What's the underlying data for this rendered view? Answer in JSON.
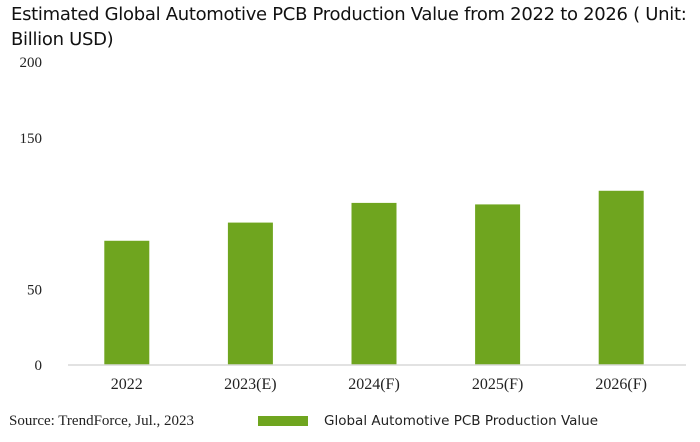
{
  "chart_data": {
    "type": "bar",
    "title": "Estimated Global Automotive PCB Production Value from 2022 to 2026 ( Unit: Billion USD)",
    "xlabel": "",
    "ylabel": "",
    "categories": [
      "2022",
      "2023(E)",
      "2024(F)",
      "2025(F)",
      "2026(F)"
    ],
    "series": [
      {
        "name": "Global Automotive PCB Production Value",
        "values": [
          82,
          94,
          107,
          106,
          115
        ],
        "color": "#6fa51f"
      }
    ],
    "ylim": [
      0,
      200
    ],
    "yticks": [
      0,
      50,
      150,
      200
    ],
    "grid": false,
    "legend_position": "bottom"
  },
  "source": "Source: TrendForce, Jul., 2023"
}
